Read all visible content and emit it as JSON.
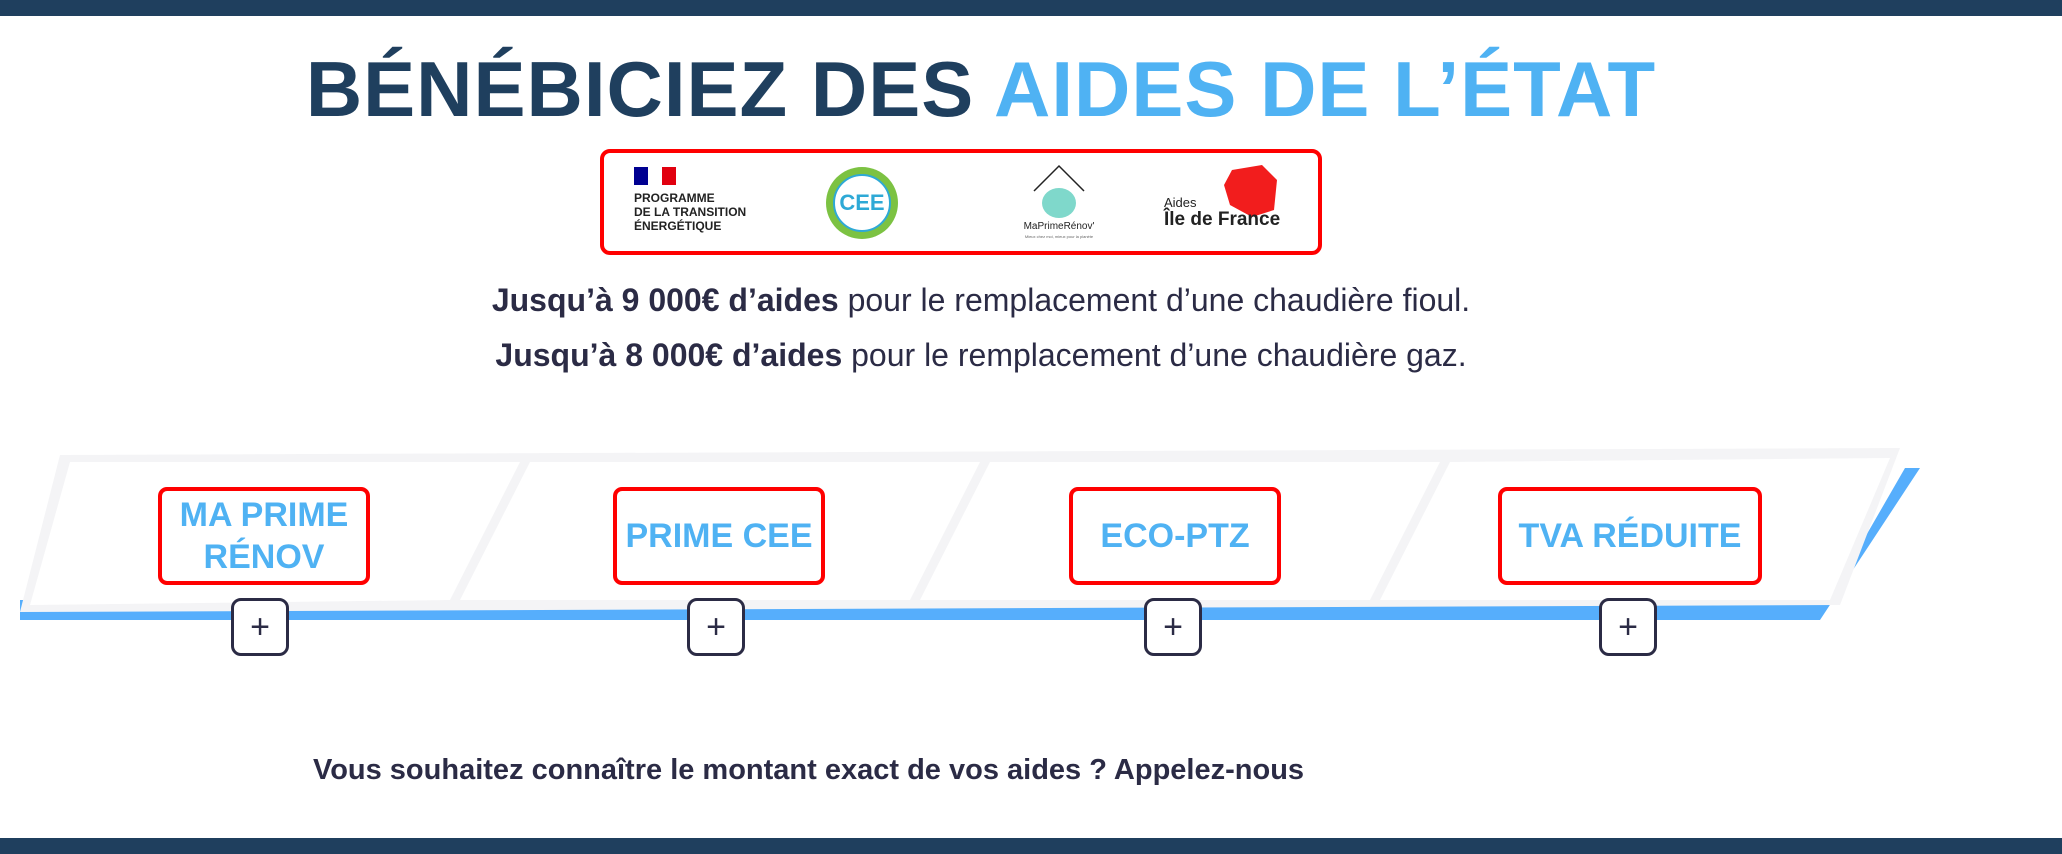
{
  "header": {
    "title_part1": "BÉNÉBICIEZ DES ",
    "title_part2": "AIDES DE L’ÉTAT"
  },
  "logos": {
    "programme": [
      "PROGRAMME",
      "DE LA TRANSITION",
      "ÉNERGÉTIQUE"
    ],
    "cee": "CEE",
    "maprimerenov": "MaPrimeRénov'",
    "maprimerenov_tagline": "Mieux chez moi, mieux pour la planète",
    "idf_small": "Aides",
    "idf_big": "Île de France"
  },
  "lines": [
    {
      "bold": "Jusqu’à 9 000€ d’aides",
      "rest": " pour le remplacement d’une chaudière fioul."
    },
    {
      "bold": "Jusqu’à 8 000€ d’aides",
      "rest": " pour le remplacement d’une chaudière gaz."
    }
  ],
  "aids": [
    {
      "label": "MA PRIME RÉNOV",
      "expand": "+"
    },
    {
      "label": "PRIME CEE",
      "expand": "+"
    },
    {
      "label": "ECO-PTZ",
      "expand": "+"
    },
    {
      "label": "TVA RÉDUITE",
      "expand": "+"
    }
  ],
  "cta": "Vous souhaitez connaître le montant exact de vos aides ? Appelez-nous",
  "colors": {
    "navy": "#1f3f5e",
    "accent": "#4fb2f3",
    "highlight_border": "#ff0000",
    "band": "#56aefc"
  }
}
